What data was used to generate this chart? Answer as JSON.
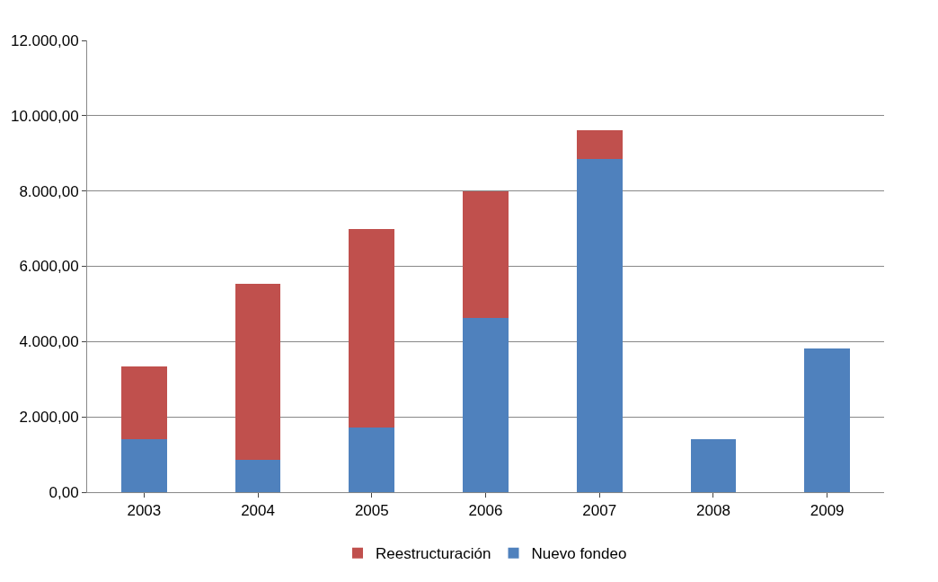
{
  "chart_data": {
    "type": "bar",
    "stacked": true,
    "categories": [
      "2003",
      "2004",
      "2005",
      "2006",
      "2007",
      "2008",
      "2009"
    ],
    "series": [
      {
        "name": "Nuevo fondeo",
        "color": "#4f81bd",
        "values": [
          1410,
          860,
          1710,
          4640,
          8840,
          1400,
          3820
        ]
      },
      {
        "name": "Reestructuración",
        "color": "#c0504d",
        "values": [
          1930,
          4680,
          5270,
          3360,
          780,
          null,
          null
        ]
      }
    ],
    "ylim": [
      0,
      12000
    ],
    "yticks": [
      {
        "value": 0,
        "label": "0,00"
      },
      {
        "value": 2000,
        "label": "2.000,00"
      },
      {
        "value": 4000,
        "label": "4.000,00"
      },
      {
        "value": 6000,
        "label": "6.000,00"
      },
      {
        "value": 8000,
        "label": "8.000,00"
      },
      {
        "value": 10000,
        "label": "10.000,00"
      },
      {
        "value": 12000,
        "label": "12.000,00"
      }
    ],
    "grid": "y",
    "legend": "bottom"
  }
}
